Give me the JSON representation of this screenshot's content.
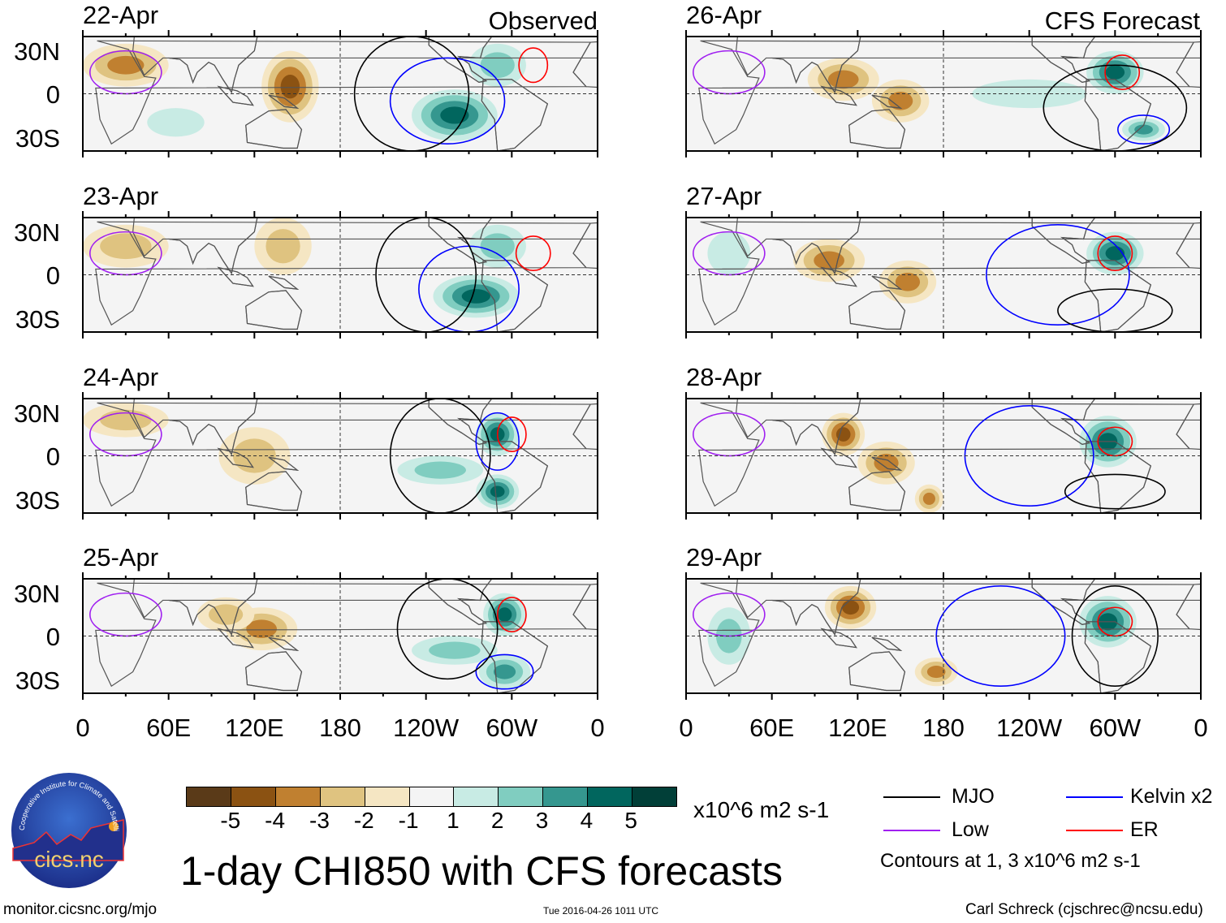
{
  "panel_titles": {
    "left": "Observed",
    "right": "CFS Forecast"
  },
  "lat_labels": [
    "30N",
    "0",
    "30S"
  ],
  "lon_labels": [
    "0",
    "60E",
    "120E",
    "180",
    "120W",
    "60W",
    "0"
  ],
  "colorbar": {
    "labels": [
      "-5",
      "-4",
      "-3",
      "-2",
      "-1",
      "1",
      "2",
      "3",
      "4",
      "5"
    ],
    "colors": [
      "#5a3a18",
      "#8b5212",
      "#c08030",
      "#dfc380",
      "#f5e6c3",
      "#f4f4f4",
      "#c8ebe4",
      "#80cdc0",
      "#35978f",
      "#01665e",
      "#013f38"
    ],
    "units": "x10^6 m2 s-1"
  },
  "title": "1-day CHI850 with CFS forecasts",
  "legend": {
    "items": [
      {
        "label": "MJO",
        "color": "#000000"
      },
      {
        "label": "Low",
        "color": "#a020f0"
      },
      {
        "label": "Kelvin x2",
        "color": "#0000ff"
      },
      {
        "label": "ER",
        "color": "#ff0000"
      }
    ],
    "note": "Contours at 1, 3 x10^6 m2 s-1"
  },
  "footer": {
    "url": "monitor.cicsnc.org/mjo",
    "timestamp": "Tue 2016-04-26 1011 UTC",
    "author": "Carl Schreck (cjschrec@ncsu.edu)"
  },
  "logo": {
    "ring_text": "Cooperative Institute for Climate and Satellites",
    "name": "cics.nc"
  },
  "chart_data": {
    "type": "heatmap",
    "lon_range": [
      0,
      360
    ],
    "lat_range": [
      -40,
      40
    ],
    "panels": [
      {
        "date": "22-Apr",
        "column": "Observed",
        "blobs": [
          {
            "lon": 30,
            "lat": 20,
            "v": -3,
            "rx": 30,
            "ry": 15
          },
          {
            "lon": 145,
            "lat": 5,
            "v": -4,
            "rx": 20,
            "ry": 25
          },
          {
            "lon": 260,
            "lat": -15,
            "v": 4,
            "rx": 30,
            "ry": 18
          },
          {
            "lon": 290,
            "lat": 20,
            "v": 2,
            "rx": 20,
            "ry": 15
          },
          {
            "lon": 65,
            "lat": -20,
            "v": 1,
            "rx": 20,
            "ry": 10
          }
        ],
        "contours": [
          {
            "t": "Kelvin",
            "lon": 255,
            "lat": -5,
            "rx": 40,
            "ry": 30
          },
          {
            "t": "ER",
            "lon": 315,
            "lat": 20,
            "rx": 10,
            "ry": 12
          },
          {
            "t": "MJO",
            "lon": 230,
            "lat": 0,
            "rx": 40,
            "ry": 40
          },
          {
            "t": "Low",
            "lon": 30,
            "lat": 15,
            "rx": 25,
            "ry": 15
          }
        ]
      },
      {
        "date": "23-Apr",
        "column": "Observed",
        "blobs": [
          {
            "lon": 30,
            "lat": 20,
            "v": -2,
            "rx": 30,
            "ry": 15
          },
          {
            "lon": 140,
            "lat": 20,
            "v": -2,
            "rx": 20,
            "ry": 20
          },
          {
            "lon": 275,
            "lat": -15,
            "v": 4,
            "rx": 30,
            "ry": 15
          },
          {
            "lon": 290,
            "lat": 20,
            "v": 2,
            "rx": 20,
            "ry": 15
          }
        ],
        "contours": [
          {
            "t": "Kelvin",
            "lon": 270,
            "lat": -10,
            "rx": 35,
            "ry": 30
          },
          {
            "t": "ER",
            "lon": 315,
            "lat": 15,
            "rx": 12,
            "ry": 12
          },
          {
            "t": "MJO",
            "lon": 240,
            "lat": 0,
            "rx": 35,
            "ry": 40
          },
          {
            "t": "Low",
            "lon": 30,
            "lat": 15,
            "rx": 25,
            "ry": 15
          }
        ]
      },
      {
        "date": "24-Apr",
        "column": "Observed",
        "blobs": [
          {
            "lon": 30,
            "lat": 25,
            "v": -2,
            "rx": 30,
            "ry": 12
          },
          {
            "lon": 120,
            "lat": 0,
            "v": -2,
            "rx": 25,
            "ry": 20
          },
          {
            "lon": 290,
            "lat": 15,
            "v": 4,
            "rx": 15,
            "ry": 15
          },
          {
            "lon": 290,
            "lat": -25,
            "v": 4,
            "rx": 15,
            "ry": 12
          },
          {
            "lon": 250,
            "lat": -10,
            "v": 2,
            "rx": 30,
            "ry": 10
          }
        ],
        "contours": [
          {
            "t": "Kelvin",
            "lon": 290,
            "lat": 10,
            "rx": 15,
            "ry": 20
          },
          {
            "t": "ER",
            "lon": 300,
            "lat": 15,
            "rx": 10,
            "ry": 12
          },
          {
            "t": "MJO",
            "lon": 250,
            "lat": 0,
            "rx": 35,
            "ry": 40
          },
          {
            "t": "Low",
            "lon": 30,
            "lat": 15,
            "rx": 25,
            "ry": 15
          }
        ]
      },
      {
        "date": "25-Apr",
        "column": "Observed",
        "blobs": [
          {
            "lon": 125,
            "lat": 5,
            "v": -3,
            "rx": 25,
            "ry": 15
          },
          {
            "lon": 100,
            "lat": 15,
            "v": -2,
            "rx": 20,
            "ry": 12
          },
          {
            "lon": 295,
            "lat": 15,
            "v": 4,
            "rx": 15,
            "ry": 15
          },
          {
            "lon": 295,
            "lat": -25,
            "v": 3,
            "rx": 18,
            "ry": 12
          },
          {
            "lon": 260,
            "lat": -10,
            "v": 2,
            "rx": 30,
            "ry": 10
          }
        ],
        "contours": [
          {
            "t": "Kelvin",
            "lon": 295,
            "lat": -25,
            "rx": 20,
            "ry": 12
          },
          {
            "t": "ER",
            "lon": 300,
            "lat": 15,
            "rx": 10,
            "ry": 12
          },
          {
            "t": "MJO",
            "lon": 255,
            "lat": 5,
            "rx": 35,
            "ry": 35
          },
          {
            "t": "Low",
            "lon": 30,
            "lat": 15,
            "rx": 25,
            "ry": 15
          }
        ]
      },
      {
        "date": "26-Apr",
        "column": "CFS Forecast",
        "blobs": [
          {
            "lon": 110,
            "lat": 10,
            "v": -3,
            "rx": 25,
            "ry": 15
          },
          {
            "lon": 150,
            "lat": -5,
            "v": -3,
            "rx": 20,
            "ry": 15
          },
          {
            "lon": 300,
            "lat": 15,
            "v": 4,
            "rx": 20,
            "ry": 15
          },
          {
            "lon": 320,
            "lat": -25,
            "v": 3,
            "rx": 15,
            "ry": 8
          },
          {
            "lon": 240,
            "lat": 0,
            "v": 1,
            "rx": 40,
            "ry": 10
          }
        ],
        "contours": [
          {
            "t": "Kelvin",
            "lon": 320,
            "lat": -25,
            "rx": 18,
            "ry": 10
          },
          {
            "t": "ER",
            "lon": 305,
            "lat": 15,
            "rx": 12,
            "ry": 12
          },
          {
            "t": "MJO",
            "lon": 300,
            "lat": -10,
            "rx": 50,
            "ry": 30
          },
          {
            "t": "Low",
            "lon": 30,
            "lat": 15,
            "rx": 25,
            "ry": 15
          }
        ]
      },
      {
        "date": "27-Apr",
        "column": "CFS Forecast",
        "blobs": [
          {
            "lon": 100,
            "lat": 10,
            "v": -3,
            "rx": 25,
            "ry": 15
          },
          {
            "lon": 155,
            "lat": -5,
            "v": -3,
            "rx": 20,
            "ry": 15
          },
          {
            "lon": 300,
            "lat": 15,
            "v": 4,
            "rx": 20,
            "ry": 15
          },
          {
            "lon": 30,
            "lat": 15,
            "v": 1,
            "rx": 15,
            "ry": 15
          }
        ],
        "contours": [
          {
            "t": "Kelvin",
            "lon": 260,
            "lat": 0,
            "rx": 50,
            "ry": 35
          },
          {
            "t": "ER",
            "lon": 300,
            "lat": 15,
            "rx": 12,
            "ry": 12
          },
          {
            "t": "MJO",
            "lon": 300,
            "lat": -25,
            "rx": 40,
            "ry": 15
          },
          {
            "t": "Low",
            "lon": 30,
            "lat": 15,
            "rx": 25,
            "ry": 15
          }
        ]
      },
      {
        "date": "28-Apr",
        "column": "CFS Forecast",
        "blobs": [
          {
            "lon": 110,
            "lat": 15,
            "v": -4,
            "rx": 15,
            "ry": 15
          },
          {
            "lon": 170,
            "lat": -30,
            "v": -3,
            "rx": 10,
            "ry": 10
          },
          {
            "lon": 140,
            "lat": -5,
            "v": -3,
            "rx": 20,
            "ry": 15
          },
          {
            "lon": 295,
            "lat": 10,
            "v": 4,
            "rx": 20,
            "ry": 18
          }
        ],
        "contours": [
          {
            "t": "Kelvin",
            "lon": 240,
            "lat": 0,
            "rx": 45,
            "ry": 35
          },
          {
            "t": "ER",
            "lon": 300,
            "lat": 10,
            "rx": 12,
            "ry": 10
          },
          {
            "t": "MJO",
            "lon": 300,
            "lat": -25,
            "rx": 35,
            "ry": 12
          },
          {
            "t": "Low",
            "lon": 30,
            "lat": 15,
            "rx": 25,
            "ry": 15
          }
        ]
      },
      {
        "date": "29-Apr",
        "column": "CFS Forecast",
        "blobs": [
          {
            "lon": 115,
            "lat": 20,
            "v": -4,
            "rx": 18,
            "ry": 15
          },
          {
            "lon": 175,
            "lat": -25,
            "v": -3,
            "rx": 15,
            "ry": 10
          },
          {
            "lon": 295,
            "lat": 10,
            "v": 4,
            "rx": 20,
            "ry": 18
          },
          {
            "lon": 30,
            "lat": 0,
            "v": 2,
            "rx": 15,
            "ry": 20
          }
        ],
        "contours": [
          {
            "t": "Kelvin",
            "lon": 220,
            "lat": 0,
            "rx": 45,
            "ry": 35
          },
          {
            "t": "ER",
            "lon": 300,
            "lat": 10,
            "rx": 12,
            "ry": 10
          },
          {
            "t": "MJO",
            "lon": 300,
            "lat": 0,
            "rx": 30,
            "ry": 35
          },
          {
            "t": "Low",
            "lon": 30,
            "lat": 15,
            "rx": 25,
            "ry": 15
          }
        ]
      }
    ]
  }
}
